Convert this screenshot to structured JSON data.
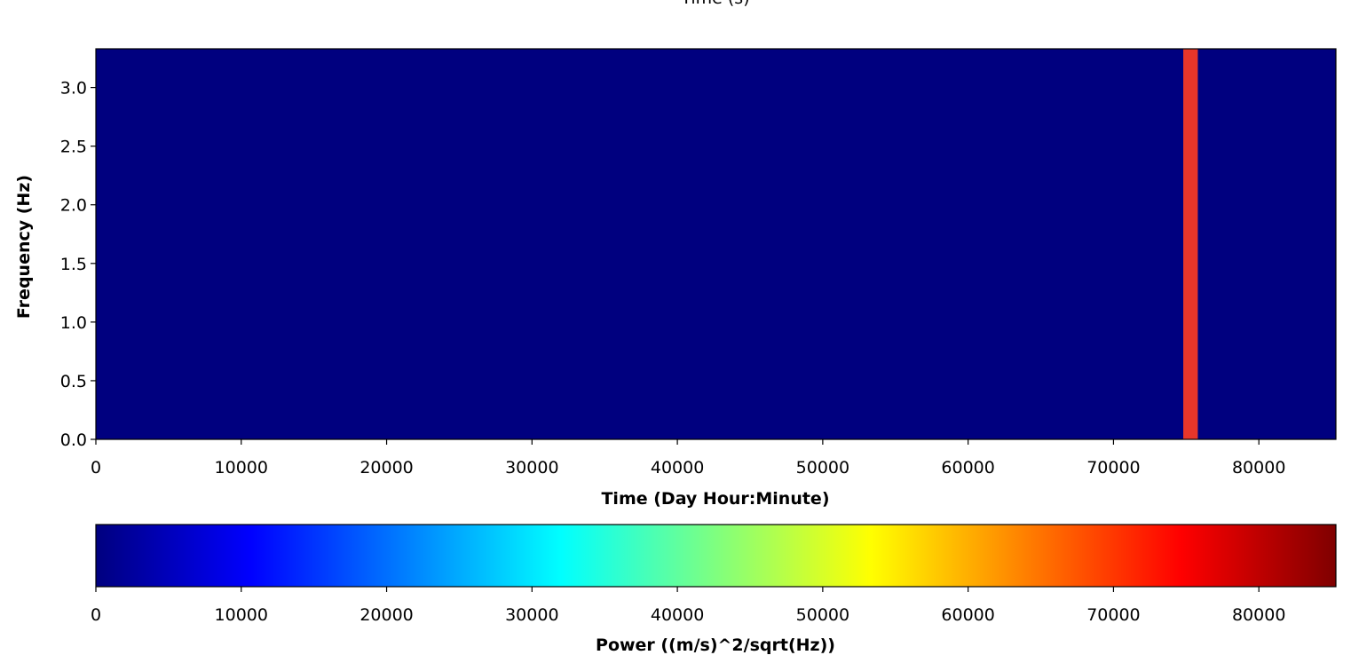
{
  "chart_data": {
    "type": "heatmap",
    "top_title": "Time (s)",
    "xlabel": "Time (Day Hour:Minute)",
    "ylabel": "Frequency (Hz)",
    "xlim": [
      0,
      85300
    ],
    "ylim": [
      0,
      3.33
    ],
    "x_ticks": [
      0,
      10000,
      20000,
      30000,
      40000,
      50000,
      60000,
      70000,
      80000
    ],
    "x_tick_labels": [
      "0",
      "10000",
      "20000",
      "30000",
      "40000",
      "50000",
      "60000",
      "70000",
      "80000"
    ],
    "y_ticks": [
      0.0,
      0.5,
      1.0,
      1.5,
      2.0,
      2.5,
      3.0
    ],
    "y_tick_labels": [
      "0.0",
      "0.5",
      "1.0",
      "1.5",
      "2.0",
      "2.5",
      "3.0"
    ],
    "background_color": "#00007f",
    "cells": [
      {
        "x_start": 74800,
        "x_end": 75800,
        "y_start": 0,
        "y_end": 3.33,
        "value": 72000,
        "color": "#e8362a"
      }
    ],
    "colorbar": {
      "label": "Power ((m/s)^2/sqrt(Hz))",
      "range": [
        0,
        85300
      ],
      "ticks": [
        0,
        10000,
        20000,
        30000,
        40000,
        50000,
        60000,
        70000,
        80000
      ],
      "tick_labels": [
        "0",
        "10000",
        "20000",
        "30000",
        "40000",
        "50000",
        "60000",
        "70000",
        "80000"
      ],
      "colormap": "jet",
      "colormap_stops": [
        "#00007f",
        "#0000ff",
        "#007fff",
        "#00ffff",
        "#7fff7f",
        "#ffff00",
        "#ff7f00",
        "#ff0000",
        "#7f0000"
      ]
    }
  }
}
